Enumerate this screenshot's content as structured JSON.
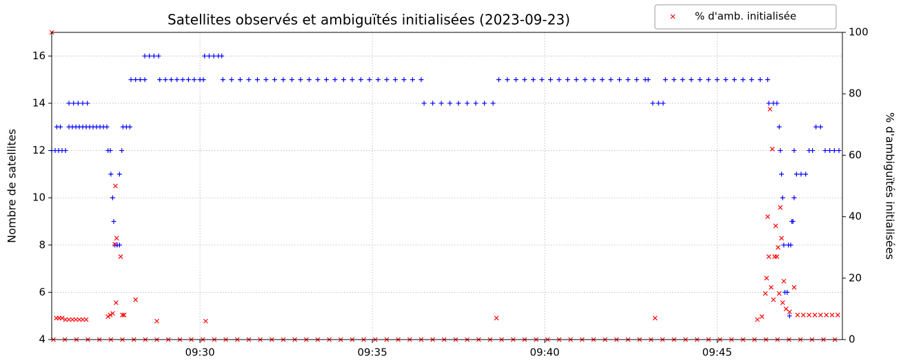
{
  "chart_data": {
    "type": "scatter",
    "title": "Satellites observés et ambiguïtés initialisées (2023-09-23)",
    "ylabel": "Nombre de satellites",
    "y2label": "% d'ambiguïtés initialisées",
    "xlim": [
      "09:25:42",
      "09:48:38"
    ],
    "xticks": [
      "09:30",
      "09:35",
      "09:40",
      "09:45"
    ],
    "ylim": [
      4,
      17
    ],
    "yticks": [
      4,
      6,
      8,
      10,
      12,
      14,
      16
    ],
    "y2lim": [
      0,
      100
    ],
    "y2ticks": [
      0,
      20,
      40,
      60,
      80,
      100
    ],
    "grid": true,
    "legend": "upper right",
    "series": [
      {
        "color": "#0000ff",
        "marker": "+",
        "x": [
          "09:25:42",
          "09:25:48",
          "09:25:54",
          "09:26:00",
          "09:26:06",
          "09:25:51",
          "09:25:57",
          "09:26:12",
          "09:26:18",
          "09:26:24",
          "09:26:30",
          "09:26:36",
          "09:26:42",
          "09:26:48",
          "09:26:54",
          "09:27:00",
          "09:27:06",
          "09:27:12",
          "09:27:18",
          "09:26:12",
          "09:26:20",
          "09:26:28",
          "09:26:36",
          "09:26:44",
          "09:27:20",
          "09:27:24",
          "09:27:25",
          "09:27:28",
          "09:27:30",
          "09:27:32",
          "09:27:36",
          "09:27:40",
          "09:27:40",
          "09:27:44",
          "09:27:46",
          "09:27:52",
          "09:27:58",
          "09:28:00",
          "09:28:08",
          "09:28:16",
          "09:28:24",
          "09:28:24",
          "09:28:32",
          "09:28:40",
          "09:28:48",
          "09:28:50",
          "09:29:00",
          "09:29:10",
          "09:29:20",
          "09:29:30",
          "09:29:40",
          "09:29:50",
          "09:30:00",
          "09:30:06",
          "09:30:08",
          "09:30:16",
          "09:30:24",
          "09:30:32",
          "09:30:38",
          "09:30:40",
          "09:30:55",
          "09:31:10",
          "09:31:25",
          "09:31:40",
          "09:31:55",
          "09:32:10",
          "09:32:25",
          "09:32:40",
          "09:32:55",
          "09:33:10",
          "09:33:25",
          "09:33:40",
          "09:33:55",
          "09:34:10",
          "09:34:25",
          "09:34:40",
          "09:34:55",
          "09:35:10",
          "09:35:25",
          "09:35:40",
          "09:35:55",
          "09:36:10",
          "09:36:25",
          "09:36:30",
          "09:36:45",
          "09:37:00",
          "09:37:15",
          "09:37:30",
          "09:37:45",
          "09:38:00",
          "09:38:15",
          "09:38:30",
          "09:38:40",
          "09:38:55",
          "09:39:10",
          "09:39:25",
          "09:39:40",
          "09:39:55",
          "09:40:10",
          "09:40:25",
          "09:40:40",
          "09:40:55",
          "09:41:10",
          "09:41:25",
          "09:41:40",
          "09:41:55",
          "09:42:10",
          "09:42:25",
          "09:42:40",
          "09:42:55",
          "09:43:00",
          "09:43:08",
          "09:43:18",
          "09:43:26",
          "09:43:30",
          "09:43:45",
          "09:44:00",
          "09:44:15",
          "09:44:30",
          "09:44:45",
          "09:45:00",
          "09:45:15",
          "09:45:30",
          "09:45:45",
          "09:46:00",
          "09:46:15",
          "09:46:28",
          "09:46:30",
          "09:46:38",
          "09:46:44",
          "09:46:48",
          "09:46:50",
          "09:46:52",
          "09:46:54",
          "09:46:56",
          "09:46:58",
          "09:47:02",
          "09:47:04",
          "09:47:06",
          "09:47:08",
          "09:47:10",
          "09:47:12",
          "09:47:14",
          "09:47:14",
          "09:47:18",
          "09:47:26",
          "09:47:34",
          "09:47:40",
          "09:47:46",
          "09:47:52",
          "09:48:00",
          "09:48:08",
          "09:48:16",
          "09:48:24",
          "09:48:32"
        ],
        "values": [
          12,
          12,
          12,
          12,
          12,
          13,
          13,
          13,
          13,
          13,
          13,
          13,
          13,
          13,
          13,
          13,
          13,
          13,
          13,
          14,
          14,
          14,
          14,
          14,
          12,
          12,
          11,
          10,
          9,
          8,
          8,
          8,
          11,
          12,
          13,
          13,
          13,
          15,
          15,
          15,
          15,
          16,
          16,
          16,
          16,
          15,
          15,
          15,
          15,
          15,
          15,
          15,
          15,
          15,
          16,
          16,
          16,
          16,
          16,
          15,
          15,
          15,
          15,
          15,
          15,
          15,
          15,
          15,
          15,
          15,
          15,
          15,
          15,
          15,
          15,
          15,
          15,
          15,
          15,
          15,
          15,
          15,
          15,
          14,
          14,
          14,
          14,
          14,
          14,
          14,
          14,
          14,
          15,
          15,
          15,
          15,
          15,
          15,
          15,
          15,
          15,
          15,
          15,
          15,
          15,
          15,
          15,
          15,
          15,
          15,
          15,
          14,
          14,
          14,
          15,
          15,
          15,
          15,
          15,
          15,
          15,
          15,
          15,
          15,
          15,
          15,
          15,
          14,
          14,
          14,
          13,
          12,
          11,
          10,
          8,
          6,
          6,
          8,
          5,
          8,
          9,
          9,
          10,
          12,
          11,
          11,
          11,
          12,
          12,
          13,
          13,
          12,
          12,
          12,
          12
        ]
      },
      {
        "name": "% d'amb. initialisée",
        "color": "#ff0000",
        "marker": "x",
        "axis": "y2",
        "x": [
          "09:25:42",
          "09:25:50",
          "09:25:55",
          "09:26:00",
          "09:26:06",
          "09:26:12",
          "09:26:18",
          "09:26:24",
          "09:26:30",
          "09:26:36",
          "09:26:42",
          "09:27:20",
          "09:27:24",
          "09:27:28",
          "09:27:32",
          "09:27:33",
          "09:27:34",
          "09:27:35",
          "09:27:42",
          "09:27:45",
          "09:27:48",
          "09:28:08",
          "09:28:45",
          "09:30:10",
          "09:38:36",
          "09:43:12",
          "09:46:10",
          "09:46:18",
          "09:46:24",
          "09:46:26",
          "09:46:28",
          "09:46:30",
          "09:46:32",
          "09:46:34",
          "09:46:36",
          "09:46:38",
          "09:46:40",
          "09:46:42",
          "09:46:44",
          "09:46:46",
          "09:46:48",
          "09:46:50",
          "09:46:52",
          "09:46:54",
          "09:46:56",
          "09:47:00",
          "09:47:06",
          "09:47:14",
          "09:47:20",
          "09:47:30",
          "09:47:40",
          "09:47:50",
          "09:48:00",
          "09:48:10",
          "09:48:20",
          "09:48:30",
          "09:25:45",
          "09:26:05",
          "09:26:25",
          "09:26:45",
          "09:27:05",
          "09:27:25",
          "09:27:45",
          "09:28:05",
          "09:28:25",
          "09:28:45",
          "09:29:05",
          "09:29:25",
          "09:29:45",
          "09:30:05",
          "09:30:25",
          "09:30:45",
          "09:31:05",
          "09:31:25",
          "09:31:45",
          "09:32:05",
          "09:32:25",
          "09:32:45",
          "09:33:05",
          "09:33:25",
          "09:33:45",
          "09:34:05",
          "09:34:25",
          "09:34:45",
          "09:35:05",
          "09:35:25",
          "09:35:45",
          "09:36:05",
          "09:36:25",
          "09:36:45",
          "09:37:05",
          "09:37:25",
          "09:37:45",
          "09:38:05",
          "09:38:25",
          "09:38:45",
          "09:39:05",
          "09:39:25",
          "09:39:45",
          "09:40:05",
          "09:40:25",
          "09:40:45",
          "09:41:05",
          "09:41:25",
          "09:41:45",
          "09:42:05",
          "09:42:25",
          "09:42:45",
          "09:43:05",
          "09:43:25",
          "09:43:45",
          "09:44:05",
          "09:44:25",
          "09:44:45",
          "09:45:05",
          "09:45:25",
          "09:45:45",
          "09:46:05",
          "09:46:25",
          "09:46:45",
          "09:47:05",
          "09:47:25",
          "09:47:45",
          "09:48:05",
          "09:48:25"
        ],
        "values": [
          100,
          7,
          7,
          7,
          6.5,
          6.5,
          6.5,
          6.5,
          6.5,
          6.5,
          6.5,
          7.5,
          8,
          8.5,
          31,
          50,
          12,
          33,
          27,
          8,
          8,
          13,
          6,
          6,
          7,
          7,
          6.5,
          7.5,
          15,
          20,
          40,
          27,
          75,
          17,
          62,
          13,
          27,
          37,
          27,
          30,
          15,
          43,
          33,
          12,
          19,
          10,
          9,
          17,
          8,
          8,
          8,
          8,
          8,
          8,
          8,
          8,
          0,
          0,
          0,
          0,
          0,
          0,
          0,
          0,
          0,
          0,
          0,
          0,
          0,
          0,
          0,
          0,
          0,
          0,
          0,
          0,
          0,
          0,
          0,
          0,
          0,
          0,
          0,
          0,
          0,
          0,
          0,
          0,
          0,
          0,
          0,
          0,
          0,
          0,
          0,
          0,
          0,
          0,
          0,
          0,
          0,
          0,
          0,
          0,
          0,
          0,
          0,
          0,
          0,
          0,
          0,
          0,
          0,
          0,
          0,
          0,
          0,
          0,
          0,
          0,
          0,
          0,
          0,
          0,
          0
        ]
      }
    ]
  }
}
